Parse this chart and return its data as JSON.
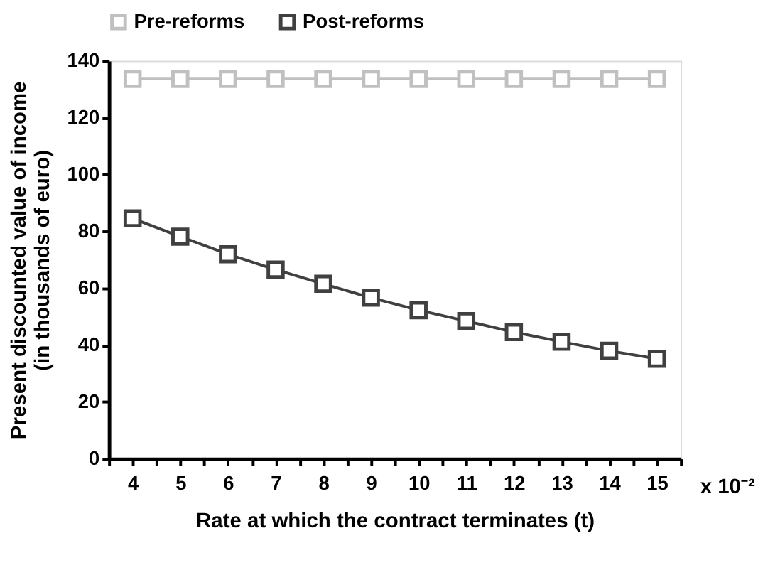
{
  "chart_data": {
    "type": "line",
    "xlabel": "Rate at which the contract terminates (t)",
    "ylabel": "Present discounted value of income\n(in thousands of euro)",
    "x": [
      4,
      5,
      6,
      7,
      8,
      9,
      10,
      11,
      12,
      13,
      14,
      15
    ],
    "series": [
      {
        "name": "Pre-reforms",
        "color": "#c0c0c0",
        "values": [
          133.6,
          133.6,
          133.6,
          133.6,
          133.6,
          133.6,
          133.6,
          133.6,
          133.6,
          133.6,
          133.6,
          133.6
        ]
      },
      {
        "name": "Post-reforms",
        "color": "#404040",
        "values": [
          84.5,
          78.1,
          71.9,
          66.5,
          61.5,
          56.6,
          52.2,
          48.4,
          44.5,
          41.1,
          37.9,
          35.1
        ]
      }
    ],
    "xlim": [
      3.5,
      15.5
    ],
    "xticks": [
      {
        "value": 3.5,
        "label": null
      },
      4,
      {
        "value": 4.5,
        "label": null
      },
      5,
      {
        "value": 5.5,
        "label": null
      },
      6,
      {
        "value": 6.5,
        "label": null
      },
      7,
      {
        "value": 7.5,
        "label": null
      },
      8,
      {
        "value": 8.5,
        "label": null
      },
      9,
      {
        "value": 9.5,
        "label": null
      },
      10,
      {
        "value": 10.5,
        "label": null
      },
      11,
      {
        "value": 11.5,
        "label": null
      },
      12,
      {
        "value": 12.5,
        "label": null
      },
      13,
      {
        "value": 13.5,
        "label": null
      },
      14,
      {
        "value": 14.5,
        "label": null
      },
      15,
      {
        "value": 15.5,
        "label": null
      }
    ],
    "ylim": [
      0,
      140
    ],
    "yticks": [
      0,
      20,
      40,
      60,
      80,
      100,
      120,
      140
    ],
    "annotations": [
      "x 10⁻²"
    ],
    "legend": "top",
    "grid": false,
    "marker": "square",
    "line_style": "solid"
  }
}
